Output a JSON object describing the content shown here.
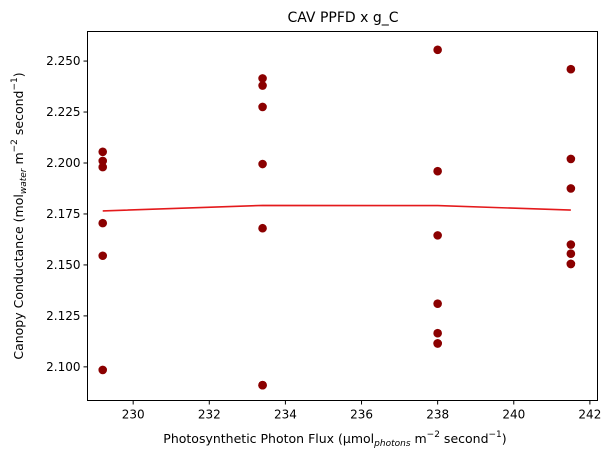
{
  "chart_data": {
    "type": "scatter",
    "title": "CAV PPFD x g_C",
    "xlabel": {
      "prefix": "Photosynthetic Photon Flux (µmol",
      "sub": "photons",
      "mid": " m",
      "sup1": "−2",
      "mid2": " second",
      "sup2": "−1",
      "suffix": ")"
    },
    "ylabel": {
      "prefix": "Canopy Conductance (mol",
      "sub": "water",
      "mid": " m",
      "sup1": "−2",
      "mid2": " second",
      "sup2": "−1",
      "suffix": ")"
    },
    "xlim": [
      228.8,
      242.2
    ],
    "ylim": [
      2.0835,
      2.2645
    ],
    "xticks": [
      230,
      232,
      234,
      236,
      238,
      240,
      242
    ],
    "xtick_labels": [
      "230",
      "232",
      "234",
      "236",
      "238",
      "240",
      "242"
    ],
    "yticks": [
      2.1,
      2.125,
      2.15,
      2.175,
      2.2,
      2.225,
      2.25
    ],
    "ytick_labels": [
      "2.100",
      "2.125",
      "2.150",
      "2.175",
      "2.200",
      "2.225",
      "2.250"
    ],
    "grid": false,
    "scatter": {
      "color": "#8b0000",
      "x": [
        229.2,
        229.2,
        229.2,
        229.2,
        229.2,
        229.2,
        233.4,
        233.4,
        233.4,
        233.4,
        233.4,
        233.4,
        233.4,
        238.0,
        238.0,
        238.0,
        238.0,
        238.0,
        238.0,
        238.0,
        241.5,
        241.5,
        241.5,
        241.5,
        241.5,
        241.5,
        241.5
      ],
      "y": [
        2.2055,
        2.201,
        2.198,
        2.1705,
        2.1545,
        2.0985,
        2.2415,
        2.238,
        2.2275,
        2.1995,
        2.168,
        2.091,
        2.091,
        2.2555,
        2.196,
        2.1645,
        2.131,
        2.1165,
        2.1115,
        2.1115,
        2.246,
        2.202,
        2.1875,
        2.16,
        2.1555,
        2.1505,
        2.1505
      ]
    },
    "fit_line": {
      "color": "#e41a1c",
      "x": [
        229.2,
        233.4,
        238.0,
        241.5
      ],
      "y": [
        2.1765,
        2.1792,
        2.1791,
        2.1769
      ]
    }
  }
}
